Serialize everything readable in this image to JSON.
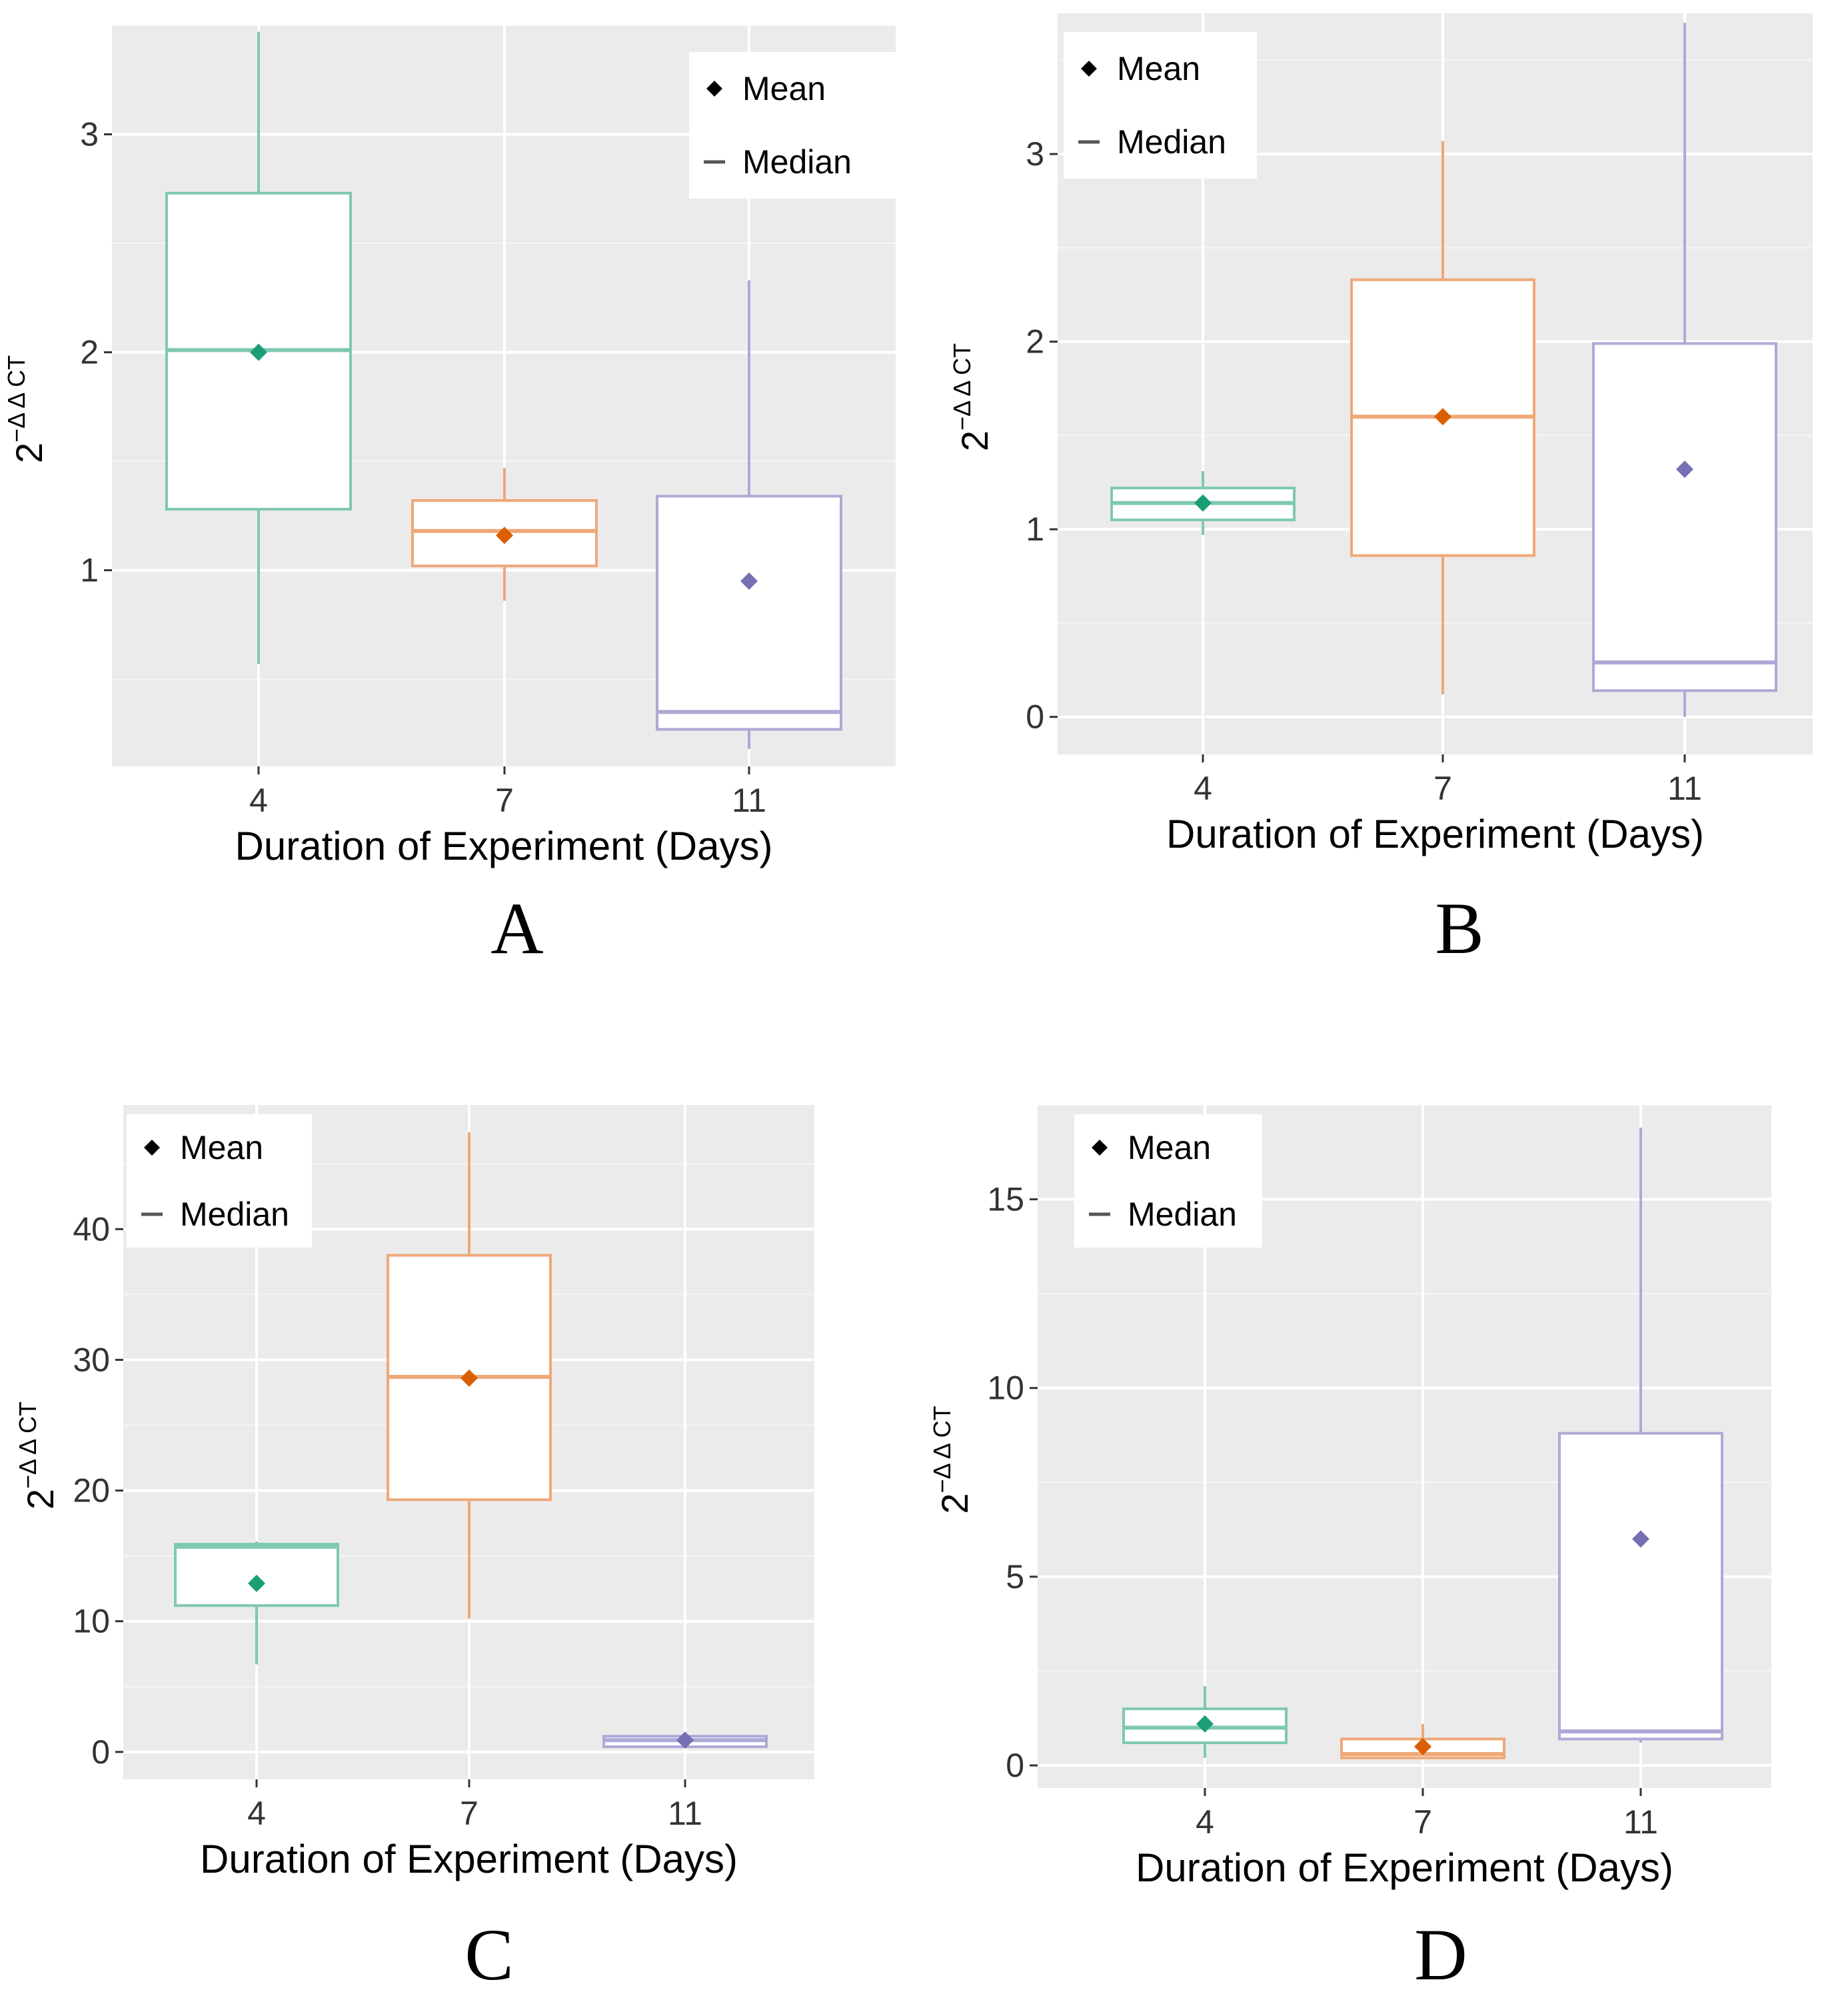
{
  "colors": {
    "panel_bg": "#EBEBEB",
    "grid": "#FFFFFF",
    "series": [
      "#1B9E77",
      "#D95F02",
      "#7570B3"
    ],
    "series_light": [
      "#7FC8B1",
      "#EFA878",
      "#ADA9D6"
    ]
  },
  "legend": {
    "mean_label": "Mean",
    "median_label": "Median"
  },
  "chart_data": [
    {
      "type": "boxplot",
      "panel_label": "A",
      "xlabel": "Duration of Experiment (Days)",
      "ylabel": {
        "base": "2",
        "sup": "−Δ Δ CT"
      },
      "categories": [
        "4",
        "7",
        "11"
      ],
      "ylim": [
        0.1,
        3.5
      ],
      "yticks": [
        1,
        2,
        3
      ],
      "yticks_label": [
        "1",
        "2",
        "3"
      ],
      "legend_position": "top-right",
      "boxes": [
        {
          "category": "4",
          "whisker_low": 0.57,
          "q1": 1.28,
          "median": 2.01,
          "q3": 2.73,
          "whisker_high": 3.47,
          "mean": 2.0
        },
        {
          "category": "7",
          "whisker_low": 0.86,
          "q1": 1.02,
          "median": 1.18,
          "q3": 1.32,
          "whisker_high": 1.47,
          "mean": 1.16
        },
        {
          "category": "11",
          "whisker_low": 0.18,
          "q1": 0.27,
          "median": 0.35,
          "q3": 1.34,
          "whisker_high": 2.33,
          "mean": 0.95
        }
      ]
    },
    {
      "type": "boxplot",
      "panel_label": "B",
      "xlabel": "Duration of Experiment (Days)",
      "ylabel": {
        "base": "2",
        "sup": "−Δ Δ CT"
      },
      "categories": [
        "4",
        "7",
        "11"
      ],
      "ylim": [
        -0.2,
        3.75
      ],
      "yticks": [
        0,
        1,
        2,
        3
      ],
      "yticks_label": [
        "0",
        "1",
        "2",
        "3"
      ],
      "legend_position": "top-left",
      "boxes": [
        {
          "category": "4",
          "whisker_low": 0.97,
          "q1": 1.05,
          "median": 1.14,
          "q3": 1.22,
          "whisker_high": 1.31,
          "mean": 1.14
        },
        {
          "category": "7",
          "whisker_low": 0.12,
          "q1": 0.86,
          "median": 1.6,
          "q3": 2.33,
          "whisker_high": 3.07,
          "mean": 1.6
        },
        {
          "category": "11",
          "whisker_low": 0.0,
          "q1": 0.14,
          "median": 0.29,
          "q3": 1.99,
          "whisker_high": 3.7,
          "mean": 1.32
        }
      ]
    },
    {
      "type": "boxplot",
      "panel_label": "C",
      "xlabel": "Duration of Experiment (Days)",
      "ylabel": {
        "base": "2",
        "sup": "−Δ Δ CT"
      },
      "categories": [
        "4",
        "7",
        "11"
      ],
      "ylim": [
        -2.1,
        49.5
      ],
      "yticks": [
        0,
        10,
        20,
        30,
        40
      ],
      "yticks_label": [
        "0",
        "10",
        "20",
        "30",
        "40"
      ],
      "legend_position": "top-left",
      "boxes": [
        {
          "category": "4",
          "whisker_low": 6.7,
          "q1": 11.2,
          "median": 15.7,
          "q3": 15.9,
          "whisker_high": 16.1,
          "mean": 12.9
        },
        {
          "category": "7",
          "whisker_low": 10.2,
          "q1": 19.3,
          "median": 28.7,
          "q3": 38.0,
          "whisker_high": 47.4,
          "mean": 28.6
        },
        {
          "category": "11",
          "whisker_low": 0.3,
          "q1": 0.4,
          "median": 0.9,
          "q3": 1.2,
          "whisker_high": 1.3,
          "mean": 0.9
        }
      ]
    },
    {
      "type": "boxplot",
      "panel_label": "D",
      "xlabel": "Duration of Experiment (Days)",
      "ylabel": {
        "base": "2",
        "sup": "−Δ Δ CT"
      },
      "categories": [
        "4",
        "7",
        "11"
      ],
      "ylim": [
        -0.6,
        17.5
      ],
      "yticks": [
        0,
        5,
        10,
        15
      ],
      "yticks_label": [
        "0",
        "5",
        "10",
        "15"
      ],
      "legend_position": "top-left",
      "boxes": [
        {
          "category": "4",
          "whisker_low": 0.2,
          "q1": 0.6,
          "median": 1.0,
          "q3": 1.5,
          "whisker_high": 2.1,
          "mean": 1.1
        },
        {
          "category": "7",
          "whisker_low": 0.2,
          "q1": 0.2,
          "median": 0.3,
          "q3": 0.7,
          "whisker_high": 1.1,
          "mean": 0.5
        },
        {
          "category": "11",
          "whisker_low": 0.6,
          "q1": 0.7,
          "median": 0.9,
          "q3": 8.8,
          "whisker_high": 16.9,
          "mean": 6.0
        }
      ]
    }
  ]
}
